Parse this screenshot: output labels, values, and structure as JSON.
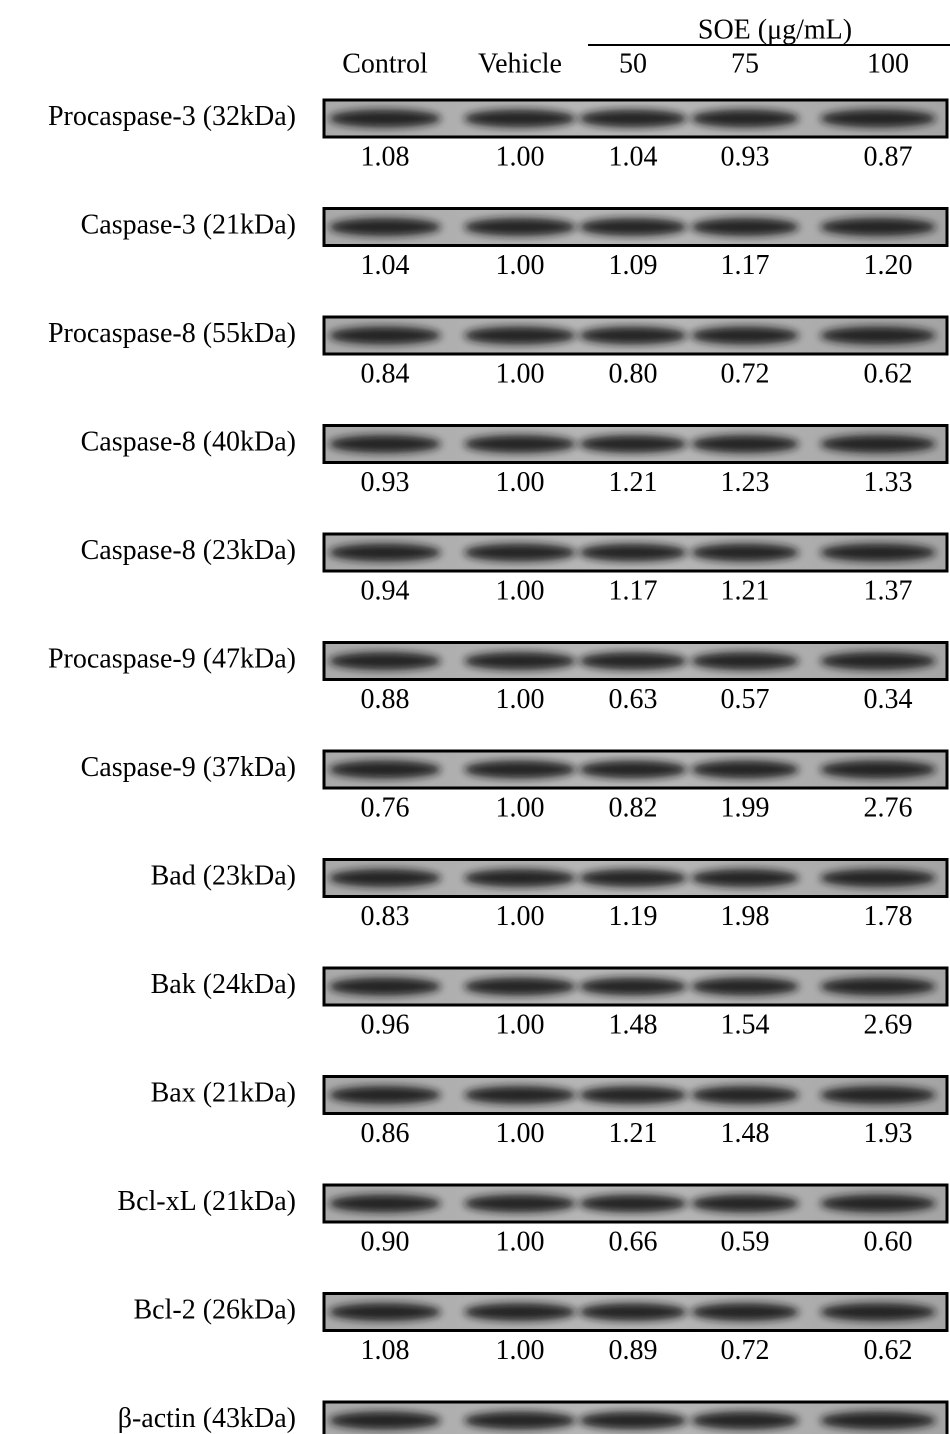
{
  "header": {
    "group_label": "SOE (μg/mL)",
    "lanes": [
      "Control",
      "Vehicle",
      "50",
      "75",
      "100"
    ]
  },
  "rows": [
    {
      "label": "Procaspase-3 (32kDa)",
      "values": [
        "1.08",
        "1.00",
        "1.04",
        "0.93",
        "0.87"
      ]
    },
    {
      "label": "Caspase-3 (21kDa)",
      "values": [
        "1.04",
        "1.00",
        "1.09",
        "1.17",
        "1.20"
      ]
    },
    {
      "label": "Procaspase-8 (55kDa)",
      "values": [
        "0.84",
        "1.00",
        "0.80",
        "0.72",
        "0.62"
      ]
    },
    {
      "label": "Caspase-8 (40kDa)",
      "values": [
        "0.93",
        "1.00",
        "1.21",
        "1.23",
        "1.33"
      ]
    },
    {
      "label": "Caspase-8 (23kDa)",
      "values": [
        "0.94",
        "1.00",
        "1.17",
        "1.21",
        "1.37"
      ]
    },
    {
      "label": "Procaspase-9 (47kDa)",
      "values": [
        "0.88",
        "1.00",
        "0.63",
        "0.57",
        "0.34"
      ]
    },
    {
      "label": "Caspase-9 (37kDa)",
      "values": [
        "0.76",
        "1.00",
        "0.82",
        "1.99",
        "2.76"
      ]
    },
    {
      "label": "Bad (23kDa)",
      "values": [
        "0.83",
        "1.00",
        "1.19",
        "1.98",
        "1.78"
      ]
    },
    {
      "label": "Bak (24kDa)",
      "values": [
        "0.96",
        "1.00",
        "1.48",
        "1.54",
        "2.69"
      ]
    },
    {
      "label": "Bax (21kDa)",
      "values": [
        "0.86",
        "1.00",
        "1.21",
        "1.48",
        "1.93"
      ]
    },
    {
      "label": "Bcl-xL (21kDa)",
      "values": [
        "0.90",
        "1.00",
        "0.66",
        "0.59",
        "0.60"
      ]
    },
    {
      "label": "Bcl-2 (26kDa)",
      "values": [
        "1.08",
        "1.00",
        "0.89",
        "0.72",
        "0.62"
      ]
    },
    {
      "label": "β-actin (43kDa)"
    }
  ]
}
